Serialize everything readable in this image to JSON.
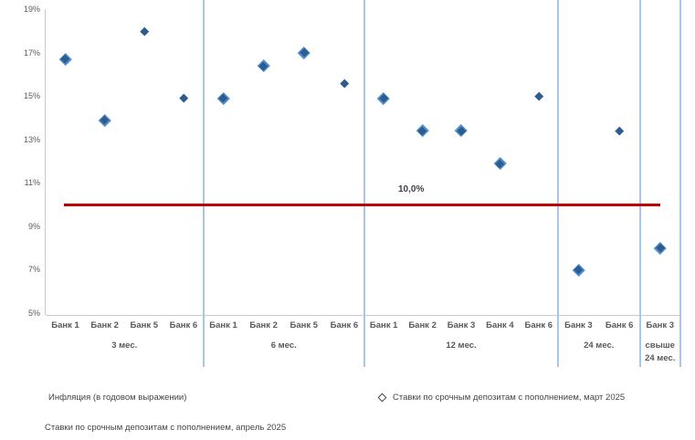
{
  "chart_data": {
    "type": "scatter",
    "title": "",
    "xlabel": "",
    "ylabel": "",
    "ylim": [
      5,
      19
    ],
    "y_ticks": [
      {
        "value": 19,
        "label": "19%"
      },
      {
        "value": 17,
        "label": "17%"
      },
      {
        "value": 15,
        "label": "15%"
      },
      {
        "value": 13,
        "label": "13%"
      },
      {
        "value": 11,
        "label": "11%"
      },
      {
        "value": 9,
        "label": "9%"
      },
      {
        "value": 7,
        "label": "7%"
      },
      {
        "value": 5,
        "label": "5%"
      }
    ],
    "grid": "vertical-section-dividers-only",
    "inflation": {
      "value": 10.0,
      "label": "10,0%"
    },
    "groups": [
      {
        "term": "3 мес.",
        "term_lines": [
          "3 мес."
        ],
        "points": [
          {
            "bank": "Банк 1",
            "april": 16.7,
            "march": 16.7
          },
          {
            "bank": "Банк 2",
            "april": 13.9,
            "march": 13.9
          },
          {
            "bank": "Банк 5",
            "april": 18.0,
            "march": null
          },
          {
            "bank": "Банк 6",
            "april": 14.9,
            "march": null
          }
        ]
      },
      {
        "term": "6 мес.",
        "term_lines": [
          "6 мес."
        ],
        "points": [
          {
            "bank": "Банк 1",
            "april": 14.9,
            "march": 14.9
          },
          {
            "bank": "Банк 2",
            "april": 16.4,
            "march": 16.4
          },
          {
            "bank": "Банк 5",
            "april": 17.0,
            "march": 17.0
          },
          {
            "bank": "Банк 6",
            "april": 15.6,
            "march": null
          }
        ]
      },
      {
        "term": "12 мес.",
        "term_lines": [
          "12 мес."
        ],
        "points": [
          {
            "bank": "Банк 1",
            "april": 14.9,
            "march": 14.9
          },
          {
            "bank": "Банк 2",
            "april": 13.4,
            "march": 13.4
          },
          {
            "bank": "Банк 3",
            "april": 13.4,
            "march": 13.4
          },
          {
            "bank": "Банк 4",
            "april": 11.9,
            "march": 11.9
          },
          {
            "bank": "Банк 6",
            "april": 15.0,
            "march": null
          }
        ]
      },
      {
        "term": "24 мес.",
        "term_lines": [
          "24 мес."
        ],
        "points": [
          {
            "bank": "Банк 3",
            "april": 7.0,
            "march": 7.0
          },
          {
            "bank": "Банк 6",
            "april": 13.4,
            "march": null
          }
        ]
      },
      {
        "term": "свыше 24 мес.",
        "term_lines": [
          "свыше",
          "24 мес."
        ],
        "points": [
          {
            "bank": "Банк 3",
            "april": 8.0,
            "march": 8.0
          }
        ]
      }
    ],
    "legend": [
      {
        "marker": "line",
        "label": "Инфляция (в годовом выражении)"
      },
      {
        "marker": "hollow-diamond",
        "label": "Ставки по срочным депозитам с пополнением, март 2025"
      },
      {
        "marker": "filled-diamond",
        "label": "Ставки по срочным депозитам с пополнением, апрель 2025"
      }
    ],
    "colors": {
      "april_marker": "#2e5c8e",
      "march_marker": "#4e8fce",
      "inflation_line": "#c00000",
      "divider": "#aac6e5",
      "axis": "#c9c9c9",
      "tick_text": "#595959",
      "label_text": "#595959"
    }
  }
}
